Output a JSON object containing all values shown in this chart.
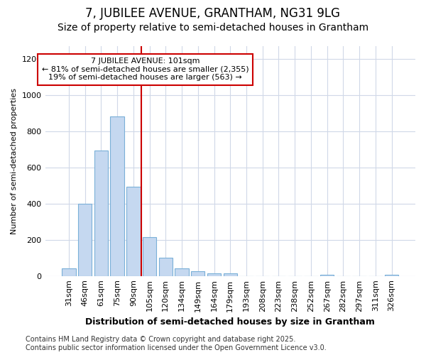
{
  "title1": "7, JUBILEE AVENUE, GRANTHAM, NG31 9LG",
  "title2": "Size of property relative to semi-detached houses in Grantham",
  "xlabel": "Distribution of semi-detached houses by size in Grantham",
  "ylabel": "Number of semi-detached properties",
  "categories": [
    "31sqm",
    "46sqm",
    "61sqm",
    "75sqm",
    "90sqm",
    "105sqm",
    "120sqm",
    "134sqm",
    "149sqm",
    "164sqm",
    "179sqm",
    "193sqm",
    "208sqm",
    "223sqm",
    "238sqm",
    "252sqm",
    "267sqm",
    "282sqm",
    "297sqm",
    "311sqm",
    "326sqm"
  ],
  "values": [
    40,
    400,
    695,
    880,
    495,
    215,
    100,
    40,
    25,
    15,
    15,
    0,
    0,
    0,
    0,
    0,
    5,
    0,
    0,
    0,
    5
  ],
  "bar_color": "#c5d8f0",
  "bar_edge_color": "#7ab0d8",
  "vline_index": 4.5,
  "vline_color": "#cc0000",
  "annotation_title": "7 JUBILEE AVENUE: 101sqm",
  "annotation_line1": "← 81% of semi-detached houses are smaller (2,355)",
  "annotation_line2": "19% of semi-detached houses are larger (563) →",
  "annotation_box_facecolor": "white",
  "annotation_box_edgecolor": "#cc0000",
  "footnote1": "Contains HM Land Registry data © Crown copyright and database right 2025.",
  "footnote2": "Contains public sector information licensed under the Open Government Licence v3.0.",
  "ylim": [
    0,
    1270
  ],
  "yticks": [
    0,
    200,
    400,
    600,
    800,
    1000,
    1200
  ],
  "bg_color": "#ffffff",
  "grid_color": "#d0d8e8",
  "title1_fontsize": 12,
  "title2_fontsize": 10,
  "xlabel_fontsize": 9,
  "ylabel_fontsize": 8,
  "tick_fontsize": 8,
  "footnote_fontsize": 7
}
